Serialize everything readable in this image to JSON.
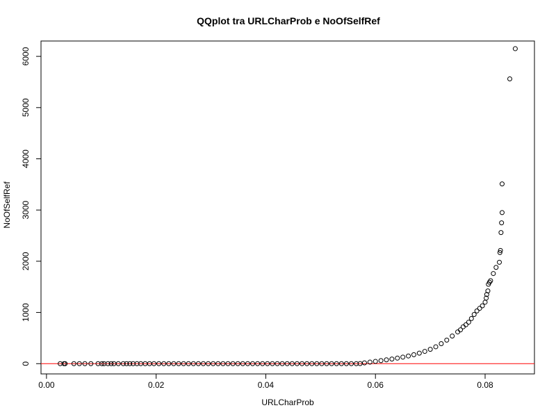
{
  "chart_data": {
    "type": "scatter",
    "title": "QQplot tra URLCharProb e NoOfSelfRef",
    "xlabel": "URLCharProb",
    "ylabel": "NoOfSelfRef",
    "xlim": [
      -0.001,
      0.089
    ],
    "ylim": [
      -200,
      6300
    ],
    "xticks": [
      0.0,
      0.02,
      0.04,
      0.06,
      0.08
    ],
    "xtick_labels": [
      "0.00",
      "0.02",
      "0.04",
      "0.06",
      "0.08"
    ],
    "yticks": [
      0,
      1000,
      2000,
      3000,
      4000,
      5000,
      6000
    ],
    "ytick_labels": [
      "0",
      "1000",
      "2000",
      "3000",
      "4000",
      "5000",
      "6000"
    ],
    "grid": false,
    "reference_line": {
      "y": 0,
      "color": "#ff0000"
    },
    "point_color": "#000000",
    "series": [
      {
        "values": [
          [
            0.0025,
            0
          ],
          [
            0.0032,
            0
          ],
          [
            0.0034,
            0
          ],
          [
            0.005,
            0
          ],
          [
            0.006,
            0
          ],
          [
            0.007,
            0
          ],
          [
            0.0081,
            0
          ],
          [
            0.0094,
            0
          ],
          [
            0.0101,
            0
          ],
          [
            0.0105,
            0
          ],
          [
            0.0112,
            0
          ],
          [
            0.0118,
            0
          ],
          [
            0.0123,
            0
          ],
          [
            0.0131,
            0
          ],
          [
            0.014,
            0
          ],
          [
            0.0146,
            0
          ],
          [
            0.0152,
            0
          ],
          [
            0.0158,
            0
          ],
          [
            0.0165,
            0
          ],
          [
            0.0172,
            0
          ],
          [
            0.018,
            0
          ],
          [
            0.0188,
            0
          ],
          [
            0.0196,
            0
          ],
          [
            0.0205,
            0
          ],
          [
            0.0214,
            0
          ],
          [
            0.0223,
            0
          ],
          [
            0.0232,
            0
          ],
          [
            0.0241,
            0
          ],
          [
            0.025,
            0
          ],
          [
            0.0259,
            0
          ],
          [
            0.0268,
            0
          ],
          [
            0.0277,
            0
          ],
          [
            0.0286,
            0
          ],
          [
            0.0295,
            0
          ],
          [
            0.0304,
            0
          ],
          [
            0.0313,
            0
          ],
          [
            0.0322,
            0
          ],
          [
            0.0331,
            0
          ],
          [
            0.034,
            0
          ],
          [
            0.0349,
            0
          ],
          [
            0.0358,
            0
          ],
          [
            0.0367,
            0
          ],
          [
            0.0376,
            0
          ],
          [
            0.0385,
            0
          ],
          [
            0.0394,
            0
          ],
          [
            0.0403,
            0
          ],
          [
            0.0412,
            0
          ],
          [
            0.0421,
            0
          ],
          [
            0.043,
            0
          ],
          [
            0.0439,
            0
          ],
          [
            0.0448,
            0
          ],
          [
            0.0457,
            0
          ],
          [
            0.0466,
            0
          ],
          [
            0.0475,
            0
          ],
          [
            0.0484,
            0
          ],
          [
            0.0493,
            0
          ],
          [
            0.0502,
            0
          ],
          [
            0.0511,
            0
          ],
          [
            0.052,
            0
          ],
          [
            0.0529,
            0
          ],
          [
            0.0538,
            0
          ],
          [
            0.0547,
            0
          ],
          [
            0.0556,
            0
          ],
          [
            0.0565,
            0
          ],
          [
            0.0572,
            2
          ],
          [
            0.058,
            15
          ],
          [
            0.059,
            30
          ],
          [
            0.06,
            45
          ],
          [
            0.061,
            60
          ],
          [
            0.062,
            75
          ],
          [
            0.063,
            90
          ],
          [
            0.064,
            108
          ],
          [
            0.065,
            128
          ],
          [
            0.066,
            150
          ],
          [
            0.067,
            175
          ],
          [
            0.068,
            205
          ],
          [
            0.069,
            240
          ],
          [
            0.07,
            280
          ],
          [
            0.071,
            330
          ],
          [
            0.072,
            390
          ],
          [
            0.073,
            460
          ],
          [
            0.074,
            540
          ],
          [
            0.075,
            620
          ],
          [
            0.0755,
            660
          ],
          [
            0.076,
            720
          ],
          [
            0.0765,
            760
          ],
          [
            0.077,
            810
          ],
          [
            0.0775,
            880
          ],
          [
            0.078,
            960
          ],
          [
            0.0785,
            1030
          ],
          [
            0.079,
            1080
          ],
          [
            0.0795,
            1130
          ],
          [
            0.08,
            1200
          ],
          [
            0.0802,
            1280
          ],
          [
            0.0803,
            1350
          ],
          [
            0.0805,
            1420
          ],
          [
            0.0806,
            1550
          ],
          [
            0.0808,
            1590
          ],
          [
            0.081,
            1620
          ],
          [
            0.0815,
            1760
          ],
          [
            0.082,
            1880
          ],
          [
            0.0826,
            1980
          ],
          [
            0.0827,
            2170
          ],
          [
            0.0828,
            2210
          ],
          [
            0.0829,
            2560
          ],
          [
            0.083,
            2750
          ],
          [
            0.0831,
            2950
          ],
          [
            0.0831,
            3510
          ],
          [
            0.0845,
            5560
          ],
          [
            0.0855,
            6150
          ]
        ]
      }
    ]
  }
}
